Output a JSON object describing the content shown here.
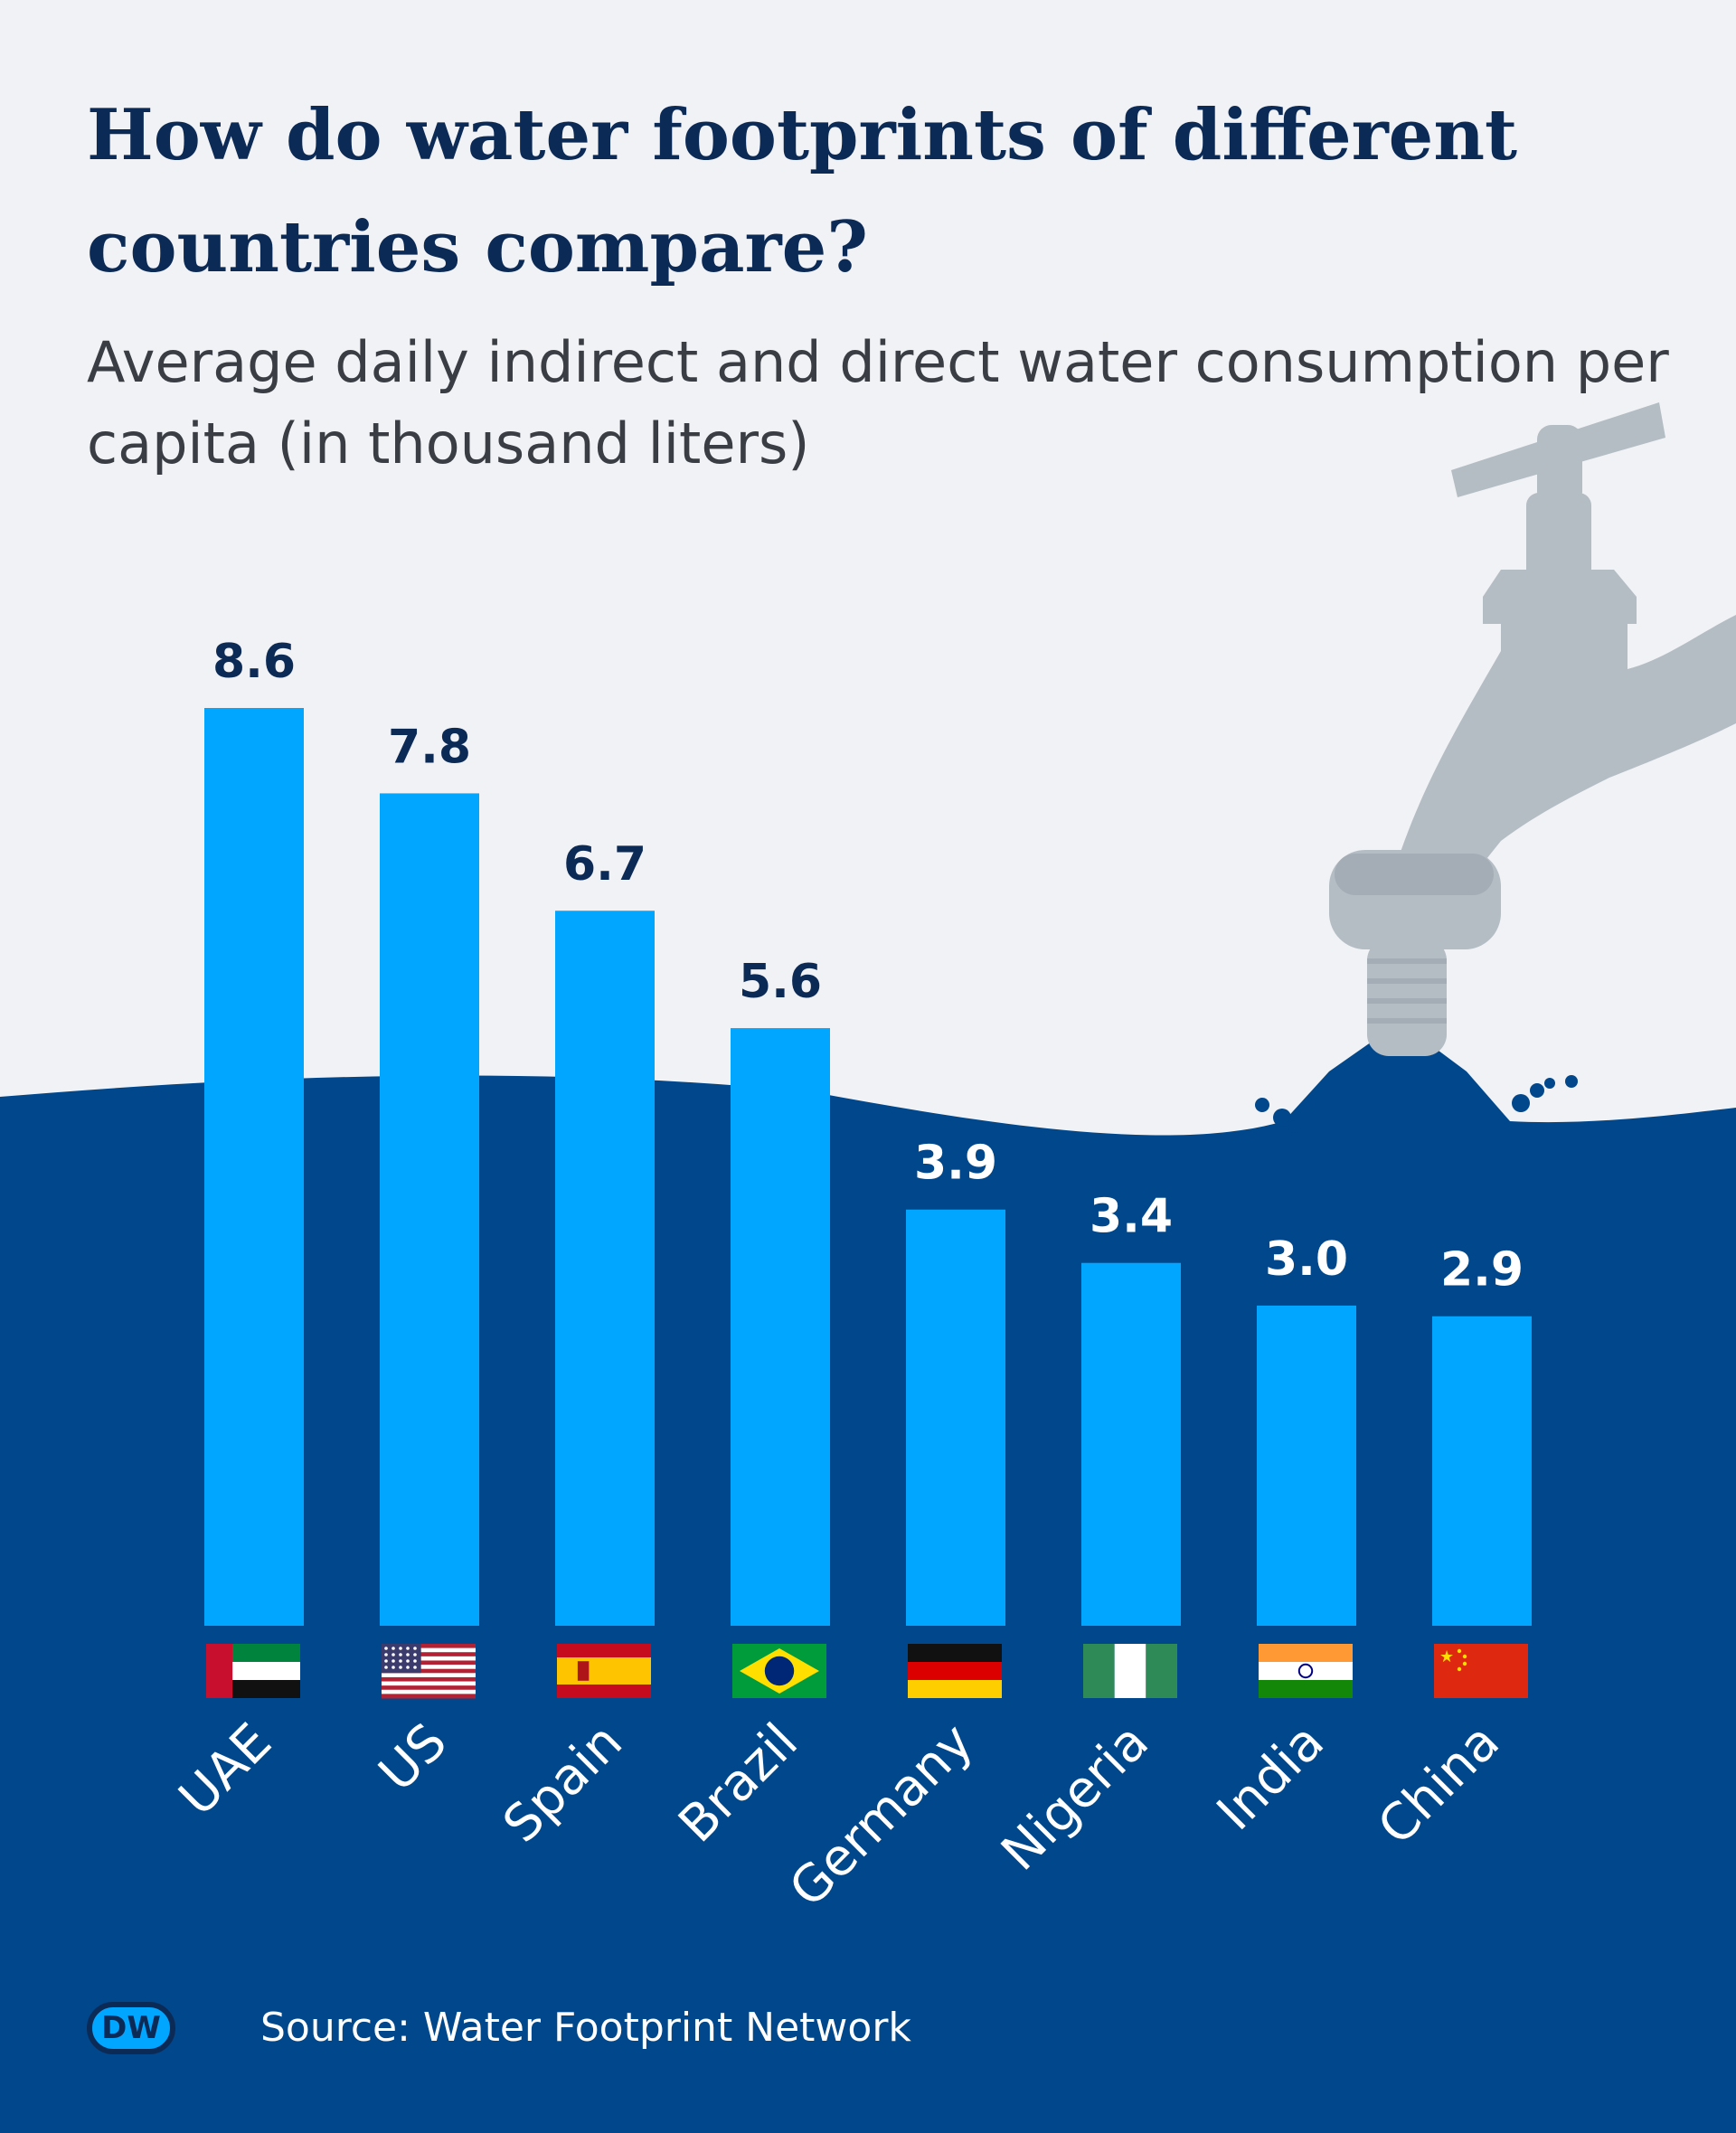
{
  "header": {
    "title": "How do water footprints of different countries compare?",
    "subtitle": "Average daily indirect and direct water consumption per capita (in thousand liters)"
  },
  "footer": {
    "logo": "DW",
    "source": "Source: Water Footprint Network"
  },
  "colors": {
    "background": "#f0f2f5",
    "water": "#00478c",
    "bar": "#00a6ff",
    "title": "#0c2a56",
    "faucet": "#b4bcc4"
  },
  "chart_data": {
    "type": "bar",
    "title": "How do water footprints of different countries compare?",
    "subtitle": "Average daily indirect and direct water consumption per capita (in thousand liters)",
    "categories": [
      "UAE",
      "US",
      "Spain",
      "Brazil",
      "Germany",
      "Nigeria",
      "India",
      "China"
    ],
    "values": [
      8.6,
      7.8,
      6.7,
      5.6,
      3.9,
      3.4,
      3.0,
      2.9
    ],
    "value_labels": [
      "8.6",
      "7.8",
      "6.7",
      "5.6",
      "3.9",
      "3.4",
      "3.0",
      "2.9"
    ],
    "flags": [
      "uae-flag",
      "us-flag",
      "spain-flag",
      "brazil-flag",
      "germany-flag",
      "nigeria-flag",
      "india-flag",
      "china-flag"
    ],
    "xlabel": "",
    "ylabel": "",
    "ylim": [
      0,
      8.6
    ],
    "grid": false,
    "legend": "none"
  }
}
